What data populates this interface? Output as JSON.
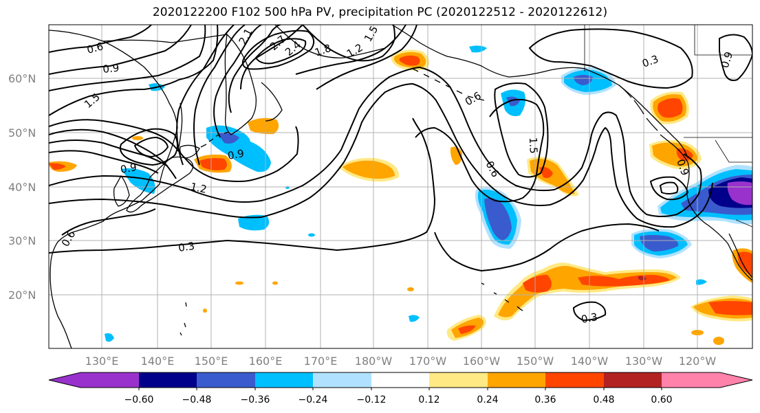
{
  "title": "2020122200 F102 500 hPa PV, precipitation PC (2020122512 - 2020122612)",
  "map": {
    "lat_labels": [
      "60°N",
      "50°N",
      "40°N",
      "30°N",
      "20°N"
    ],
    "lon_labels": [
      "130°E",
      "140°E",
      "150°E",
      "160°E",
      "170°E",
      "180°W",
      "170°W",
      "160°W",
      "150°W",
      "140°W",
      "130°W",
      "120°W"
    ],
    "contour_labels": [
      "0.6",
      "0.9",
      "1.5",
      "2.1",
      "2.4",
      "2.7",
      "1.8",
      "1.2",
      "1.5",
      "0.9",
      "1.2",
      "0.9",
      "0.3",
      "0.6",
      "0.6",
      "1.5",
      "0.9",
      "0.3",
      "0.9",
      "0.6",
      "0.3"
    ],
    "colors": {
      "land_outline": "#000000",
      "grid": "#b0b0b0",
      "contour": "#000000"
    }
  },
  "colorbar": {
    "ticks": [
      "−0.60",
      "−0.48",
      "−0.36",
      "−0.24",
      "−0.12",
      "0.12",
      "0.24",
      "0.36",
      "0.48",
      "0.60"
    ],
    "colors": [
      "#9932CC",
      "#00008B",
      "#3A5BCD",
      "#00BFFF",
      "#B0E2FF",
      "#FFFFFF",
      "#FFE985",
      "#FFA500",
      "#FF4500",
      "#B22222",
      "#FF82AB"
    ]
  }
}
